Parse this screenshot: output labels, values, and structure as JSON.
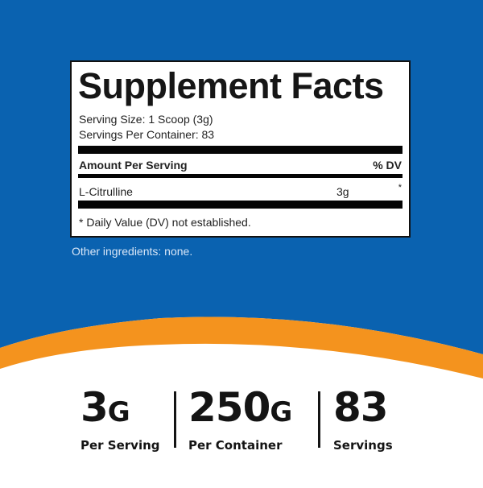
{
  "colors": {
    "background_blue": "#0a62b0",
    "accent_orange": "#f4931e",
    "text": "#141414"
  },
  "facts": {
    "title": "Supplement Facts",
    "serving_size": "Serving Size: 1 Scoop (3g)",
    "servings_per_container": "Servings Per Container: 83",
    "amount_header": "Amount Per Serving",
    "dv_header": "% DV",
    "rows": [
      {
        "name": "L-Citrulline",
        "amount": "3g",
        "dv": "*"
      }
    ],
    "footnote": "* Daily Value (DV) not established."
  },
  "other_ingredients": "Other ingredients: none.",
  "stats": [
    {
      "value": "3",
      "unit": "G",
      "label": "Per Serving"
    },
    {
      "value": "250",
      "unit": "G",
      "label": "Per Container"
    },
    {
      "value": "83",
      "unit": "",
      "label": "Servings"
    }
  ]
}
